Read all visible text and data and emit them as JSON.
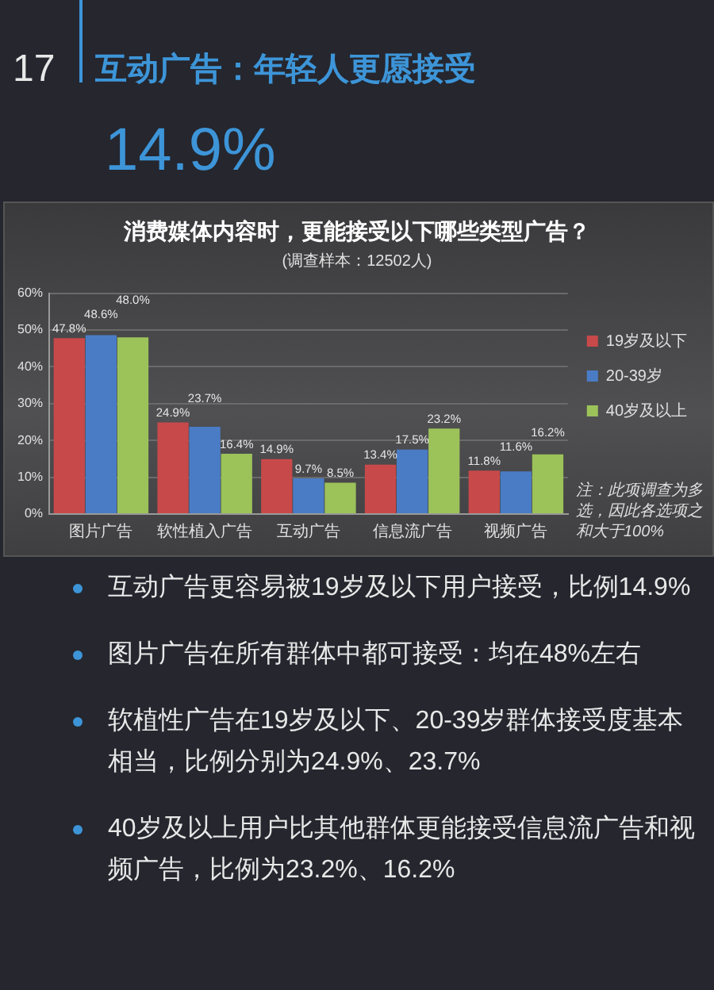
{
  "chart_data": {
    "type": "bar",
    "title": "消费媒体内容时，更能接受以下哪些类型广告？",
    "subtitle": "(调查样本：12502人)",
    "categories": [
      "图片广告",
      "软性植入广告",
      "互动广告",
      "信息流广告",
      "视频广告"
    ],
    "series": [
      {
        "name": "19岁及以下",
        "color": "#c8494a",
        "values": [
          47.8,
          24.9,
          14.9,
          13.4,
          11.8
        ],
        "value_labels": [
          "47.8%",
          "24.9%",
          "14.9%",
          "13.4%",
          "11.8%"
        ]
      },
      {
        "name": "20-39岁",
        "color": "#4a7cc6",
        "values": [
          48.6,
          23.7,
          9.7,
          17.5,
          11.6
        ],
        "value_labels": [
          "48.6%",
          "23.7%",
          "9.7%",
          "17.5%",
          "11.6%"
        ]
      },
      {
        "name": "40岁及以上",
        "color": "#9cc25a",
        "values": [
          48.0,
          16.4,
          8.5,
          23.2,
          16.2
        ],
        "value_labels": [
          "48.0%",
          "16.4%",
          "8.5%",
          "23.2%",
          "16.2%"
        ]
      }
    ],
    "ylim": [
      0,
      60
    ],
    "yticks": [
      {
        "value": 0,
        "label": "0%"
      },
      {
        "value": 10,
        "label": "10%"
      },
      {
        "value": 20,
        "label": "20%"
      },
      {
        "value": 30,
        "label": "30%"
      },
      {
        "value": 40,
        "label": "40%"
      },
      {
        "value": 50,
        "label": "50%"
      },
      {
        "value": 60,
        "label": "60%"
      }
    ],
    "grid": "y",
    "legend": "right",
    "annotations": [
      "17",
      "互动广告：年轻人更愿接受",
      "14.9%",
      "注：此项调查为多选，因此各选项之和大于100%",
      "互动广告更容易被19岁及以下用户接受，比例14.9%",
      "图片广告在所有群体中都可接受：均在48%左右",
      "软植性广告在19岁及以下、20-39岁群体接受度基本相当，比例分别为24.9%、23.7%",
      "40岁及以上用户比其他群体更能接受信息流广告和视频广告，比例为23.2%、16.2%"
    ]
  }
}
